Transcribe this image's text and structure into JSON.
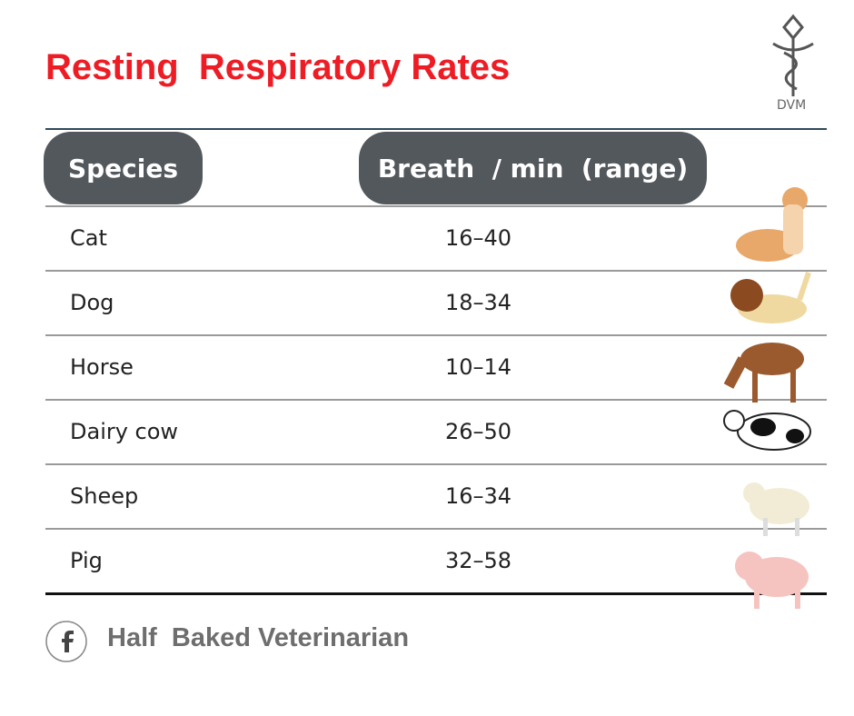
{
  "header": {
    "title": "Resting  Respiratory Rates",
    "logo_text": "DVM"
  },
  "table": {
    "columns": [
      "Species",
      "Breath  / min  (range)"
    ],
    "rows": [
      [
        "Cat",
        "16–40"
      ],
      [
        "Dog",
        "18–34"
      ],
      [
        "Horse",
        "10–14"
      ],
      [
        "Dairy cow",
        "26–50"
      ],
      [
        "Sheep",
        "16–34"
      ],
      [
        "Pig",
        "32–58"
      ]
    ]
  },
  "footer": {
    "text": "Half  Baked Veterinarian"
  }
}
